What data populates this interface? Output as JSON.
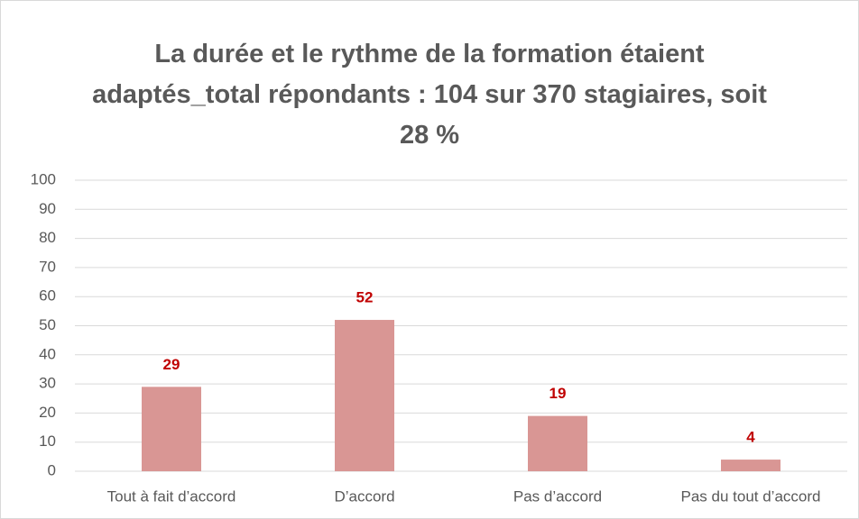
{
  "chart_data": {
    "type": "bar",
    "title": "La durée et le rythme de la formation étaient adaptés_total répondants : 104 sur 370 stagiaires, soit 28 %",
    "categories": [
      "Tout à fait d’accord",
      "D’accord",
      "Pas d’accord",
      "Pas du tout d’accord"
    ],
    "values": [
      29,
      52,
      19,
      4
    ],
    "color": "#d99694",
    "value_label_color": "#c00000",
    "ylim": [
      0,
      100
    ],
    "yticks": [
      0,
      10,
      20,
      30,
      40,
      50,
      60,
      70,
      80,
      90,
      100
    ],
    "grid": true
  }
}
